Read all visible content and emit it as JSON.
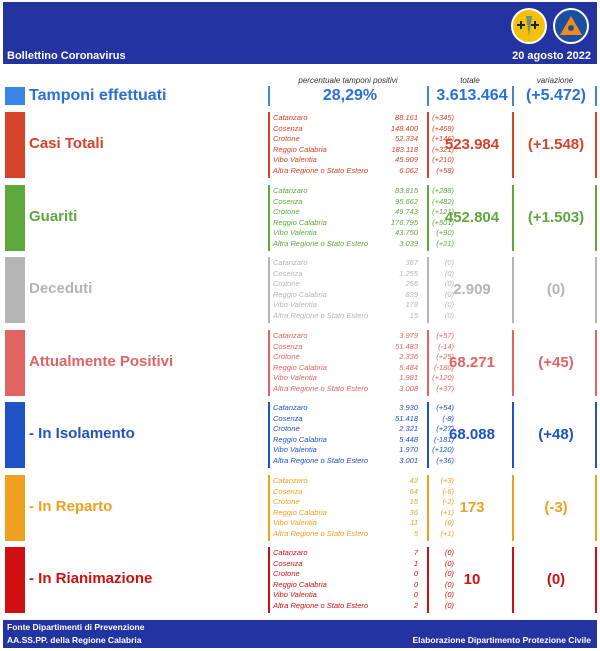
{
  "header": {
    "title": "Bollettino Coronavirus",
    "date": "20 agosto 2022",
    "col_percent": "percentuale tamponi positivi",
    "col_total": "totale",
    "col_variation": "variazione"
  },
  "tamponi": {
    "label": "Tamponi effettuati",
    "percent": "28,29%",
    "total": "3.613.464",
    "variation": "(+5.472)",
    "color": "#3a86e6"
  },
  "sections": [
    {
      "key": "casi_totali",
      "label": "Casi Totali",
      "color": "#d4432a",
      "total": "523.984",
      "variation": "(+1.548)",
      "items": [
        {
          "name": "Catanzaro",
          "value": "88.161",
          "delta": "(+345)"
        },
        {
          "name": "Cosenza",
          "value": "148.400",
          "delta": "(+468)"
        },
        {
          "name": "Crotone",
          "value": "52.334",
          "delta": "(+146)"
        },
        {
          "name": "Reggio Calabria",
          "value": "183.118",
          "delta": "(+321)"
        },
        {
          "name": "Vibo Valentia",
          "value": "45.909",
          "delta": "(+210)"
        },
        {
          "name": "Altra Regione o Stato Estero",
          "value": "6.062",
          "delta": "(+58)"
        }
      ]
    },
    {
      "key": "guariti",
      "label": "Guariti",
      "color": "#5fa83e",
      "total": "452.804",
      "variation": "(+1.503)",
      "items": [
        {
          "name": "Catanzaro",
          "value": "83.815",
          "delta": "(+288)"
        },
        {
          "name": "Cosenza",
          "value": "95.662",
          "delta": "(+482)"
        },
        {
          "name": "Crotone",
          "value": "49.743",
          "delta": "(+121)"
        },
        {
          "name": "Reggio Calabria",
          "value": "176.795",
          "delta": "(+501)"
        },
        {
          "name": "Vibo Valentia",
          "value": "43.750",
          "delta": "(+90)"
        },
        {
          "name": "Altra Regione o Stato Estero",
          "value": "3.039",
          "delta": "(+21)"
        }
      ]
    },
    {
      "key": "deceduti",
      "label": "Deceduti",
      "color": "#b5b5b5",
      "total": "2.909",
      "variation": "(0)",
      "items": [
        {
          "name": "Catanzaro",
          "value": "367",
          "delta": "(0)"
        },
        {
          "name": "Cosenza",
          "value": "1.255",
          "delta": "(0)"
        },
        {
          "name": "Crotone",
          "value": "255",
          "delta": "(0)"
        },
        {
          "name": "Reggio Calabria",
          "value": "839",
          "delta": "(0)"
        },
        {
          "name": "Vibo Valentia",
          "value": "178",
          "delta": "(0)"
        },
        {
          "name": "Altra Regione o Stato Estero",
          "value": "15",
          "delta": "(0)"
        }
      ]
    },
    {
      "key": "attualmente_positivi",
      "label": "Attualmente Positivi",
      "color": "#e06464",
      "total": "68.271",
      "variation": "(+45)",
      "items": [
        {
          "name": "Catanzaro",
          "value": "3.979",
          "delta": "(+57)"
        },
        {
          "name": "Cosenza",
          "value": "51.483",
          "delta": "(-14)"
        },
        {
          "name": "Crotone",
          "value": "2.336",
          "delta": "(+25)"
        },
        {
          "name": "Reggio Calabria",
          "value": "5.484",
          "delta": "(-180)"
        },
        {
          "name": "Vibo Valentia",
          "value": "1.981",
          "delta": "(+120)"
        },
        {
          "name": "Altra Regione o Stato Estero",
          "value": "3.008",
          "delta": "(+37)"
        }
      ]
    },
    {
      "key": "in_isolamento",
      "label": "- In Isolamento",
      "color": "#1f52c4",
      "total": "68.088",
      "variation": "(+48)",
      "items": [
        {
          "name": "Catanzaro",
          "value": "3.930",
          "delta": "(+54)"
        },
        {
          "name": "Cosenza",
          "value": "51.418",
          "delta": "(-8)"
        },
        {
          "name": "Crotone",
          "value": "2.321",
          "delta": "(+27)"
        },
        {
          "name": "Reggio Calabria",
          "value": "5.448",
          "delta": "(-181)"
        },
        {
          "name": "Vibo Valentia",
          "value": "1.970",
          "delta": "(+120)"
        },
        {
          "name": "Altra Regione o Stato Estero",
          "value": "3.001",
          "delta": "(+36)"
        }
      ]
    },
    {
      "key": "in_reparto",
      "label": "- In Reparto",
      "color": "#f0a020",
      "total": "173",
      "variation": "(-3)",
      "items": [
        {
          "name": "Catanzaro",
          "value": "42",
          "delta": "(+3)"
        },
        {
          "name": "Cosenza",
          "value": "64",
          "delta": "(-6)"
        },
        {
          "name": "Crotone",
          "value": "15",
          "delta": "(-2)"
        },
        {
          "name": "Reggio Calabria",
          "value": "36",
          "delta": "(+1)"
        },
        {
          "name": "Vibo Valentia",
          "value": "11",
          "delta": "(0)"
        },
        {
          "name": "Altra Regione o Stato Estero",
          "value": "5",
          "delta": "(+1)"
        }
      ]
    },
    {
      "key": "in_rianimazione",
      "label": "- In Rianimazione",
      "color": "#d01010",
      "total": "10",
      "variation": "(0)",
      "items": [
        {
          "name": "Catanzaro",
          "value": "7",
          "delta": "(0)"
        },
        {
          "name": "Cosenza",
          "value": "1",
          "delta": "(0)"
        },
        {
          "name": "Crotone",
          "value": "0",
          "delta": "(0)"
        },
        {
          "name": "Reggio Calabria",
          "value": "0",
          "delta": "(0)"
        },
        {
          "name": "Vibo Valentia",
          "value": "0",
          "delta": "(0)"
        },
        {
          "name": "Altra Regione o Stato Estero",
          "value": "2",
          "delta": "(0)"
        }
      ]
    }
  ],
  "footer": {
    "line1": "Fonte Dipartimenti di Prevenzione",
    "line2": "AA.SS.PP.  della Regione Calabria",
    "right": "Elaborazione Dipartimento Protezione Civile"
  },
  "icons": {
    "left_logo": "regione-calabria-emblem-icon",
    "right_logo": "protezione-civile-emblem-icon"
  }
}
